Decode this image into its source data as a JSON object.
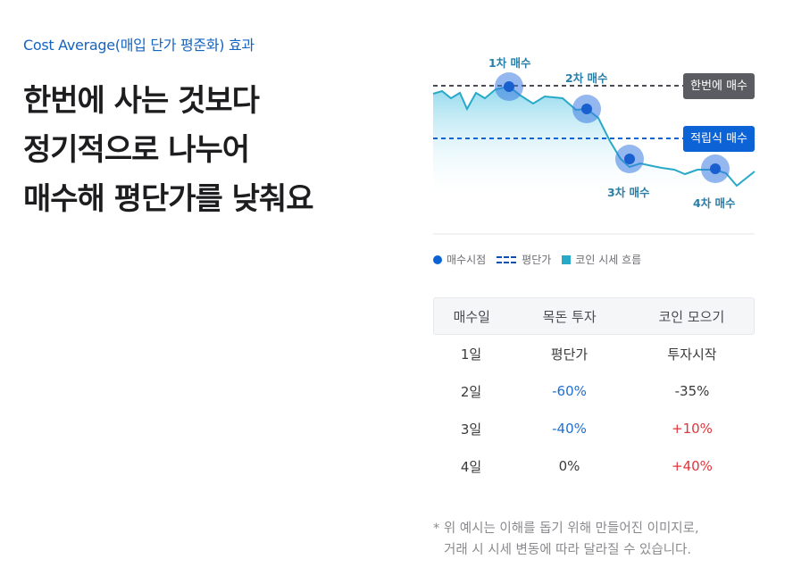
{
  "eyebrow": "Cost Average(매입 단가 평준화) 효과",
  "headline": [
    "한번에 사는 것보다",
    "정기적으로 나누어",
    "매수해 평단가를 낮춰요"
  ],
  "chart": {
    "tag_lump": "한번에 매수",
    "tag_dca": "적립식 매수",
    "points": [
      "1차 매수",
      "2차 매수",
      "3차 매수",
      "4차 매수"
    ],
    "colors": {
      "price": "#29a9c8",
      "dot": "#3b7be0",
      "lump_line": "#4a4d55",
      "dca_line": "#0b63d6"
    }
  },
  "legend": {
    "buy": "매수시점",
    "avg": "평단가",
    "flow": "코인 시세 흐름"
  },
  "table": {
    "headers": [
      "매수일",
      "목돈 투자",
      "코인 모으기"
    ],
    "rows": [
      [
        "1일",
        "평단가",
        "투자시작"
      ],
      [
        "2일",
        "-60%",
        "-35%"
      ],
      [
        "3일",
        "-40%",
        "+10%"
      ],
      [
        "4일",
        "0%",
        "+40%"
      ]
    ]
  },
  "note": [
    "* 위 예시는 이해를 돕기 위해 만들어진 이미지로,",
    "거래 시 시세 변동에 따라 달라질 수 있습니다."
  ]
}
